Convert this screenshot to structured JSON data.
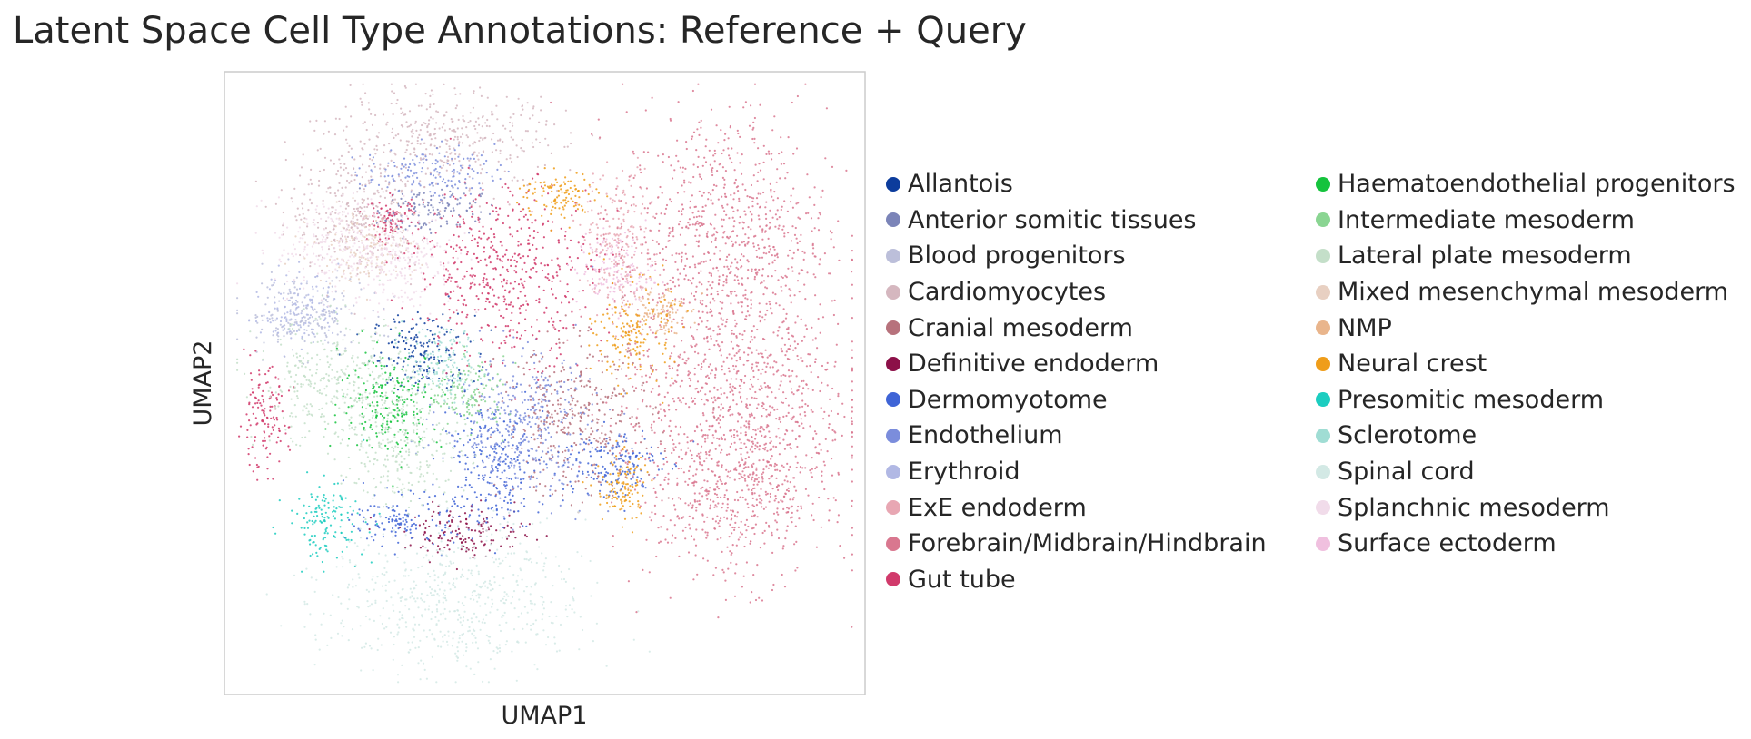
{
  "chart_data": {
    "type": "scatter",
    "title": "Latent Space Cell Type Annotations: Reference + Query",
    "xlabel": "UMAP1",
    "ylabel": "UMAP2",
    "grid": false,
    "legend_placement": "right, outside, two columns",
    "xlim": [
      0,
      100
    ],
    "ylim": [
      0,
      100
    ],
    "categories": [
      {
        "name": "Allantois",
        "color": "#0c3c9c",
        "clusters": [
          [
            31,
            55,
            4,
            3
          ]
        ]
      },
      {
        "name": "Anterior somitic tissues",
        "color": "#7b84b8",
        "clusters": [
          [
            32,
            78,
            4,
            2
          ]
        ]
      },
      {
        "name": "Blood progenitors",
        "color": "#bcbfda",
        "clusters": [
          [
            12,
            61,
            5,
            3
          ]
        ]
      },
      {
        "name": "Cardiomyocytes",
        "color": "#d5b7bf",
        "clusters": [
          [
            35,
            89,
            9,
            4
          ],
          [
            20,
            78,
            5,
            5
          ]
        ]
      },
      {
        "name": "Cranial mesoderm",
        "color": "#b7727c",
        "clusters": [
          [
            55,
            44,
            6,
            6
          ]
        ]
      },
      {
        "name": "Definitive endoderm",
        "color": "#8c1048",
        "clusters": [
          [
            38,
            26,
            5,
            2
          ]
        ]
      },
      {
        "name": "Dermomyotome",
        "color": "#3f64d6",
        "clusters": [
          [
            42,
            37,
            4,
            5
          ],
          [
            60,
            37,
            4,
            3
          ],
          [
            28,
            28,
            4,
            2
          ]
        ]
      },
      {
        "name": "Endothelium",
        "color": "#7b8ddc",
        "clusters": [
          [
            46,
            43,
            6,
            6
          ],
          [
            32,
            84,
            5,
            2
          ]
        ]
      },
      {
        "name": "Erythroid",
        "color": "#b1b8e4",
        "clusters": [
          [
            12,
            62,
            3,
            3
          ]
        ]
      },
      {
        "name": "ExE endoderm",
        "color": "#e8a7b3",
        "clusters": [
          [
            62,
            72,
            3,
            6
          ]
        ]
      },
      {
        "name": "Forebrain/Midbrain/Hindbrain",
        "color": "#d9778f",
        "clusters": [
          [
            78,
            74,
            8,
            10
          ],
          [
            80,
            48,
            9,
            10
          ],
          [
            80,
            32,
            7,
            7
          ]
        ]
      },
      {
        "name": "Gut tube",
        "color": "#d13a6b",
        "clusters": [
          [
            44,
            68,
            7,
            7
          ],
          [
            6,
            44,
            2,
            4
          ],
          [
            26,
            76,
            2,
            2
          ]
        ]
      },
      {
        "name": "Haematoendothelial progenitors",
        "color": "#15c33d",
        "clusters": [
          [
            26,
            47,
            4,
            4
          ]
        ]
      },
      {
        "name": "Intermediate mesoderm",
        "color": "#8ad592",
        "clusters": [
          [
            38,
            48,
            3,
            3
          ]
        ]
      },
      {
        "name": "Lateral plate mesoderm",
        "color": "#c4dfc9",
        "clusters": [
          [
            17,
            50,
            6,
            5
          ],
          [
            28,
            40,
            5,
            5
          ]
        ]
      },
      {
        "name": "Mixed mesenchymal mesoderm",
        "color": "#e8d0c2",
        "clusters": [
          [
            22,
            72,
            4,
            3
          ]
        ]
      },
      {
        "name": "NMP",
        "color": "#e9b58c",
        "clusters": [
          [
            68,
            62,
            2,
            2
          ]
        ]
      },
      {
        "name": "Neural crest",
        "color": "#ef9d1a",
        "clusters": [
          [
            52,
            80,
            3,
            2
          ],
          [
            64,
            58,
            3,
            4
          ],
          [
            62,
            33,
            2,
            3
          ]
        ]
      },
      {
        "name": "Presomitic mesoderm",
        "color": "#1ccdc0",
        "clusters": [
          [
            16,
            28,
            3,
            3
          ]
        ]
      },
      {
        "name": "Sclerotome",
        "color": "#a0ddd4",
        "clusters": [
          [
            34,
            53,
            3,
            3
          ]
        ]
      },
      {
        "name": "Spinal cord",
        "color": "#d3e9e5",
        "clusters": [
          [
            36,
            15,
            10,
            6
          ]
        ]
      },
      {
        "name": "Splanchnic mesoderm",
        "color": "#f1dcea",
        "clusters": [
          [
            18,
            72,
            5,
            4
          ],
          [
            28,
            70,
            4,
            4
          ]
        ]
      },
      {
        "name": "Surface ectoderm",
        "color": "#f0c0df",
        "clusters": [
          [
            61,
            68,
            3,
            3
          ]
        ]
      }
    ]
  }
}
